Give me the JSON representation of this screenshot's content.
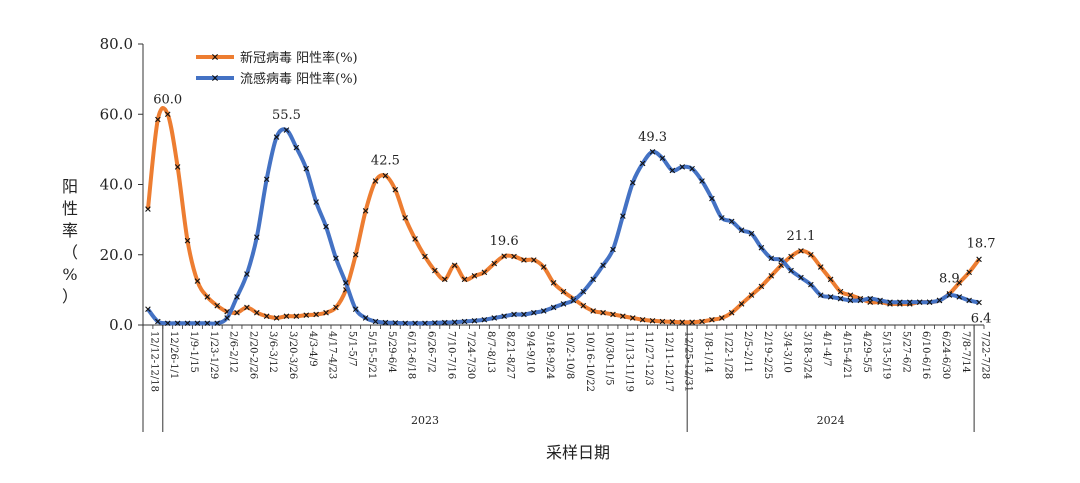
{
  "chart_data": {
    "type": "line",
    "xlabel": "采样日期",
    "ylabel": "阳性率（%）",
    "ylim": [
      0,
      80
    ],
    "yticks": [
      "0.0",
      "20.0",
      "40.0",
      "60.0",
      "80.0"
    ],
    "legend_position": "top-left",
    "grid": false,
    "x": [
      "12/12-12/18",
      "12/19-12/25",
      "12/26-1/1",
      "1/2-1/8",
      "1/9-1/15",
      "1/16-1/22",
      "1/23-1/29",
      "1/30-2/5",
      "2/6-2/12",
      "2/13-2/19",
      "2/20-2/26",
      "2/27-3/5",
      "3/6-3/12",
      "3/13-3/19",
      "3/20-3/26",
      "3/27-4/2",
      "4/3-4/9",
      "4/10-4/16",
      "4/17-4/23",
      "4/24-4/30",
      "5/1-5/7",
      "5/8-5/14",
      "5/15-5/21",
      "5/22-5/28",
      "5/29-6/4",
      "6/5-6/11",
      "6/12-6/18",
      "6/19-6/25",
      "6/26-7/2",
      "7/3-7/9",
      "7/10-7/16",
      "7/17-7/23",
      "7/24-7/30",
      "7/31-8/6",
      "8/7-8/13",
      "8/14-8/20",
      "8/21-8/27",
      "8/28-9/3",
      "9/4-9/10",
      "9/11-9/17",
      "9/18-9/24",
      "9/25-10/1",
      "10/2-10/8",
      "10/9-10/15",
      "10/16-10/22",
      "10/23-10/29",
      "10/30-11/5",
      "11/6-11/12",
      "11/13-11/19",
      "11/20-11/26",
      "11/27-12/3",
      "12/4-12/10",
      "12/11-12/17",
      "12/18-12/24",
      "12/25-12/31",
      "1/1-1/7",
      "1/8-1/14",
      "1/15-1/21",
      "1/22-1/28",
      "1/29-2/4",
      "2/5-2/11",
      "2/12-2/18",
      "2/19-2/25",
      "2/26-3/3",
      "3/4-3/10",
      "3/11-3/17",
      "3/18-3/24",
      "3/25-3/31",
      "4/1-4/7",
      "4/8-4/14",
      "4/15-4/21",
      "4/22-4/28",
      "4/29-5/5",
      "5/6-5/12",
      "5/13-5/19",
      "5/20-5/26",
      "5/27-6/2",
      "6/3-6/9",
      "6/10-6/16",
      "6/17-6/23",
      "6/24-6/30",
      "7/1-7/7",
      "7/8-7/14",
      "7/15-7/21",
      "7/22-7/28"
    ],
    "x_printed": [
      "12/12-12/18",
      "12/26-1/1",
      "1/9-1/15",
      "1/23-1/29",
      "2/6-2/12",
      "2/20-2/26",
      "3/6-3/12",
      "3/20-3/26",
      "4/3-4/9",
      "4/17-4/23",
      "5/1-5/7",
      "5/15-5/21",
      "5/29-6/4",
      "6/12-6/18",
      "6/26-7/2",
      "7/10-7/16",
      "7/24-7/30",
      "8/7-8/13",
      "8/21-8/27",
      "9/4-9/10",
      "9/18-9/24",
      "10/2-10/8",
      "10/16-10/22",
      "10/30-11/5",
      "11/13-11/19",
      "11/27-12/3",
      "12/11-12/17",
      "12/25-12/31",
      "1/8-1/14",
      "1/22-1/28",
      "2/5-2/11",
      "2/19-2/25",
      "3/4-3/10",
      "3/18-3/24",
      "4/1-4/7",
      "4/15-4/21",
      "4/29-5/5",
      "5/13-5/19",
      "5/27-6/2",
      "6/10-6/16",
      "6/24-6/30",
      "7/8-7/14",
      "7/22-7/28"
    ],
    "years": [
      {
        "label": "2023",
        "from": 2,
        "to": 55
      },
      {
        "label": "2024",
        "from": 55,
        "to": 84
      }
    ],
    "series": [
      {
        "name": "新冠病毒 阳性率(%)",
        "color": "#ED7D31",
        "values": [
          33.0,
          58.5,
          60.0,
          45.0,
          24.0,
          12.5,
          8.0,
          5.5,
          3.8,
          3.5,
          5.0,
          3.5,
          2.5,
          2.0,
          2.5,
          2.5,
          2.8,
          3.0,
          3.5,
          5.0,
          10.0,
          20.0,
          32.5,
          41.0,
          42.5,
          38.5,
          30.5,
          24.5,
          19.5,
          15.5,
          13.0,
          17.0,
          13.0,
          14.0,
          15.0,
          17.5,
          19.6,
          19.5,
          18.5,
          18.5,
          16.5,
          12.0,
          9.5,
          7.5,
          5.5,
          4.0,
          3.5,
          3.0,
          2.5,
          2.0,
          1.5,
          1.2,
          1.0,
          0.9,
          0.8,
          0.8,
          1.0,
          1.5,
          2.0,
          3.5,
          6.0,
          8.5,
          11.0,
          14.0,
          17.0,
          19.5,
          21.1,
          20.0,
          16.5,
          13.0,
          9.5,
          8.5,
          7.5,
          6.5,
          6.5,
          6.0,
          6.0,
          6.0,
          6.5,
          6.5,
          7.0,
          8.9,
          12.0,
          15.0,
          18.7
        ]
      },
      {
        "name": "流感病毒 阳性率(%)",
        "color": "#4472C4",
        "values": [
          4.5,
          1.0,
          0.5,
          0.5,
          0.5,
          0.5,
          0.5,
          0.5,
          2.0,
          8.0,
          14.5,
          25.0,
          41.5,
          53.5,
          55.5,
          50.5,
          44.5,
          35.0,
          28.0,
          19.0,
          12.0,
          4.5,
          2.0,
          1.0,
          0.7,
          0.6,
          0.5,
          0.5,
          0.5,
          0.6,
          0.7,
          0.8,
          1.0,
          1.2,
          1.5,
          2.0,
          2.5,
          3.0,
          3.0,
          3.5,
          4.0,
          5.0,
          6.0,
          7.0,
          9.5,
          13.0,
          17.0,
          21.5,
          31.0,
          40.5,
          46.0,
          49.3,
          47.5,
          44.0,
          45.0,
          44.5,
          41.0,
          36.0,
          30.5,
          29.5,
          27.0,
          26.0,
          22.0,
          19.0,
          18.5,
          15.5,
          13.5,
          11.5,
          8.5,
          8.0,
          7.5,
          7.0,
          7.0,
          7.5,
          7.0,
          6.5,
          6.5,
          6.5,
          6.5,
          6.5,
          7.0,
          8.5,
          8.0,
          7.0,
          6.4
        ]
      }
    ],
    "annotations": [
      {
        "series": 0,
        "index": 2,
        "text": "60.0"
      },
      {
        "series": 1,
        "index": 14,
        "text": "55.5"
      },
      {
        "series": 0,
        "index": 24,
        "text": "42.5"
      },
      {
        "series": 0,
        "index": 36,
        "text": "19.6"
      },
      {
        "series": 1,
        "index": 51,
        "text": "49.3"
      },
      {
        "series": 0,
        "index": 66,
        "text": "21.1"
      },
      {
        "series": 0,
        "index": 81,
        "text": "8.9"
      },
      {
        "series": 0,
        "index": 84,
        "text": "18.7"
      },
      {
        "series": 1,
        "index": 84,
        "text": "6.4"
      }
    ]
  }
}
